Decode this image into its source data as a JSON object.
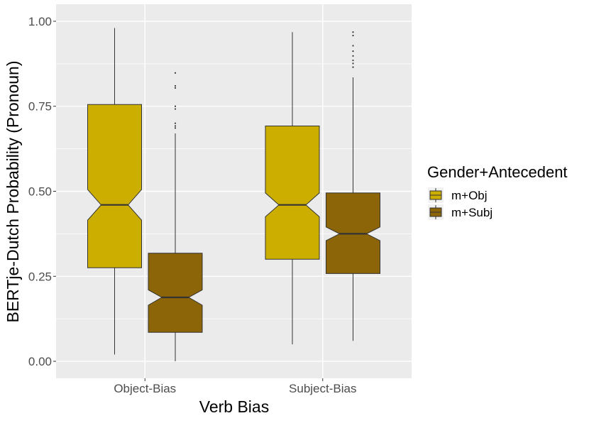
{
  "chart_data": {
    "type": "boxplot",
    "notched": true,
    "xlabel": "Verb Bias",
    "ylabel": "BERTje-Dutch Probability (Pronoun)",
    "categories": [
      "Object-Bias",
      "Subject-Bias"
    ],
    "ylim": [
      -0.05,
      1.05
    ],
    "yticks": [
      0.0,
      0.25,
      0.5,
      0.75,
      1.0
    ],
    "ytick_labels": [
      "0.00",
      "0.25",
      "0.50",
      "0.75",
      "1.00"
    ],
    "grid": true,
    "legend": {
      "title": "Gender+Antecedent",
      "placement": "right"
    },
    "series": [
      {
        "name": "m+Obj",
        "color": "#CCAE00",
        "boxes": [
          {
            "category": "Object-Bias",
            "whisker_low": 0.02,
            "q1": 0.275,
            "median": 0.46,
            "q3": 0.755,
            "whisker_high": 0.98,
            "notch_low": 0.415,
            "notch_high": 0.505,
            "outliers": []
          },
          {
            "category": "Subject-Bias",
            "whisker_low": 0.05,
            "q1": 0.3,
            "median": 0.46,
            "q3": 0.692,
            "whisker_high": 0.968,
            "notch_low": 0.425,
            "notch_high": 0.495,
            "outliers": []
          }
        ]
      },
      {
        "name": "m+Subj",
        "color": "#8B6508",
        "boxes": [
          {
            "category": "Object-Bias",
            "whisker_low": 0.0,
            "q1": 0.085,
            "median": 0.188,
            "q3": 0.318,
            "whisker_high": 0.67,
            "notch_low": 0.165,
            "notch_high": 0.21,
            "outliers": [
              0.848,
              0.81,
              0.804,
              0.75,
              0.742,
              0.7,
              0.692,
              0.686
            ]
          },
          {
            "category": "Subject-Bias",
            "whisker_low": 0.06,
            "q1": 0.258,
            "median": 0.375,
            "q3": 0.495,
            "whisker_high": 0.835,
            "notch_low": 0.355,
            "notch_high": 0.395,
            "outliers": [
              0.968,
              0.958,
              0.928,
              0.912,
              0.898,
              0.885,
              0.876,
              0.865
            ]
          }
        ]
      }
    ]
  }
}
